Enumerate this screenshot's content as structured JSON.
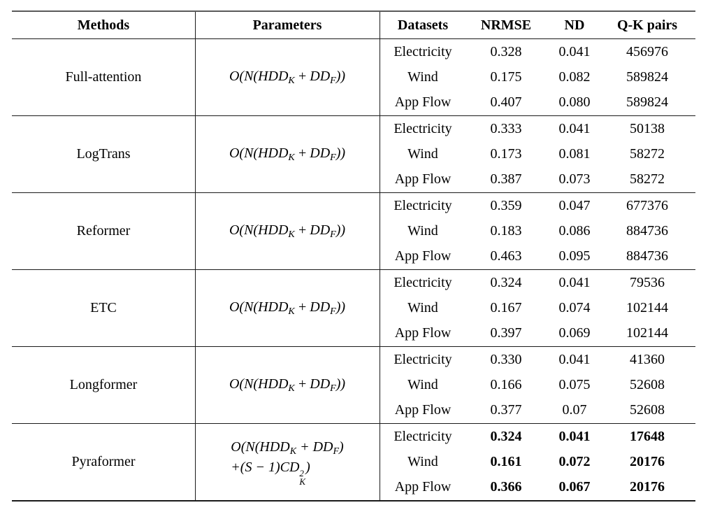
{
  "table": {
    "headers": {
      "methods": "Methods",
      "parameters": "Parameters",
      "datasets": "Datasets",
      "nrmse": "NRMSE",
      "nd": "ND",
      "qk_pairs": "Q-K pairs"
    },
    "row_columns": [
      "dataset",
      "nrmse",
      "nd",
      "qk_pairs"
    ],
    "groups": [
      {
        "method": "Full-attention",
        "bold": false,
        "formula": [
          [
            {
              "t": "O(N(HDD"
            },
            {
              "t": "K",
              "y": "sub"
            },
            {
              "t": " + DD"
            },
            {
              "t": "F",
              "y": "sub"
            },
            {
              "t": "))"
            }
          ]
        ],
        "rows": [
          [
            "Electricity",
            "0.328",
            "0.041",
            "456976"
          ],
          [
            "Wind",
            "0.175",
            "0.082",
            "589824"
          ],
          [
            "App Flow",
            "0.407",
            "0.080",
            "589824"
          ]
        ]
      },
      {
        "method": "LogTrans",
        "bold": false,
        "formula": [
          [
            {
              "t": "O(N(HDD"
            },
            {
              "t": "K",
              "y": "sub"
            },
            {
              "t": " + DD"
            },
            {
              "t": "F",
              "y": "sub"
            },
            {
              "t": "))"
            }
          ]
        ],
        "rows": [
          [
            "Electricity",
            "0.333",
            "0.041",
            "50138"
          ],
          [
            "Wind",
            "0.173",
            "0.081",
            "58272"
          ],
          [
            "App Flow",
            "0.387",
            "0.073",
            "58272"
          ]
        ]
      },
      {
        "method": "Reformer",
        "bold": false,
        "formula": [
          [
            {
              "t": "O(N(HDD"
            },
            {
              "t": "K",
              "y": "sub"
            },
            {
              "t": " + DD"
            },
            {
              "t": "F",
              "y": "sub"
            },
            {
              "t": "))"
            }
          ]
        ],
        "rows": [
          [
            "Electricity",
            "0.359",
            "0.047",
            "677376"
          ],
          [
            "Wind",
            "0.183",
            "0.086",
            "884736"
          ],
          [
            "App Flow",
            "0.463",
            "0.095",
            "884736"
          ]
        ]
      },
      {
        "method": "ETC",
        "bold": false,
        "formula": [
          [
            {
              "t": "O(N(HDD"
            },
            {
              "t": "K",
              "y": "sub"
            },
            {
              "t": " + DD"
            },
            {
              "t": "F",
              "y": "sub"
            },
            {
              "t": "))"
            }
          ]
        ],
        "rows": [
          [
            "Electricity",
            "0.324",
            "0.041",
            "79536"
          ],
          [
            "Wind",
            "0.167",
            "0.074",
            "102144"
          ],
          [
            "App Flow",
            "0.397",
            "0.069",
            "102144"
          ]
        ]
      },
      {
        "method": "Longformer",
        "bold": false,
        "formula": [
          [
            {
              "t": "O(N(HDD"
            },
            {
              "t": "K",
              "y": "sub"
            },
            {
              "t": " + DD"
            },
            {
              "t": "F",
              "y": "sub"
            },
            {
              "t": "))"
            }
          ]
        ],
        "rows": [
          [
            "Electricity",
            "0.330",
            "0.041",
            "41360"
          ],
          [
            "Wind",
            "0.166",
            "0.075",
            "52608"
          ],
          [
            "App Flow",
            "0.377",
            "0.07",
            "52608"
          ]
        ]
      },
      {
        "method": "Pyraformer",
        "bold": true,
        "formula": [
          [
            {
              "t": "O(N(HDD"
            },
            {
              "t": "K",
              "y": "sub"
            },
            {
              "t": " + DD"
            },
            {
              "t": "F",
              "y": "sub"
            },
            {
              "t": ")"
            }
          ],
          [
            {
              "t": "+(S − 1)CD"
            },
            {
              "y": "ss",
              "sup": "2",
              "sub": "K"
            },
            {
              "t": ")"
            }
          ]
        ],
        "rows": [
          [
            "Electricity",
            "0.324",
            "0.041",
            "17648"
          ],
          [
            "Wind",
            "0.161",
            "0.072",
            "20176"
          ],
          [
            "App Flow",
            "0.366",
            "0.067",
            "20176"
          ]
        ]
      }
    ]
  }
}
